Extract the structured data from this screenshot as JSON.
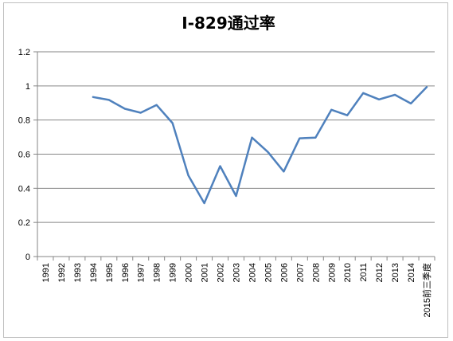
{
  "chart_data": {
    "type": "line",
    "title": "I-829通过率",
    "xlabel": "",
    "ylabel": "",
    "categories": [
      "1991",
      "1992",
      "1993",
      "1994",
      "1995",
      "1996",
      "1997",
      "1998",
      "1999",
      "2000",
      "2001",
      "2002",
      "2003",
      "2004",
      "2005",
      "2006",
      "2007",
      "2008",
      "2009",
      "2010",
      "2011",
      "2012",
      "2013",
      "2014",
      "2015前三季度"
    ],
    "series": [
      {
        "values": [
          null,
          null,
          null,
          0.935,
          0.918,
          0.866,
          0.843,
          0.888,
          0.782,
          0.475,
          0.313,
          0.53,
          0.355,
          0.697,
          0.613,
          0.498,
          0.693,
          0.697,
          0.86,
          0.828,
          0.958,
          0.921,
          0.948,
          0.897,
          0.993
        ]
      }
    ],
    "ylim": [
      0,
      1.2
    ],
    "yticks": [
      "0",
      "0.2",
      "0.4",
      "0.6",
      "0.8",
      "1",
      "1.2"
    ],
    "grid": true,
    "legend": "none",
    "colors": {
      "line": "#4f81bd",
      "grid": "#868686",
      "axis": "#868686"
    }
  }
}
